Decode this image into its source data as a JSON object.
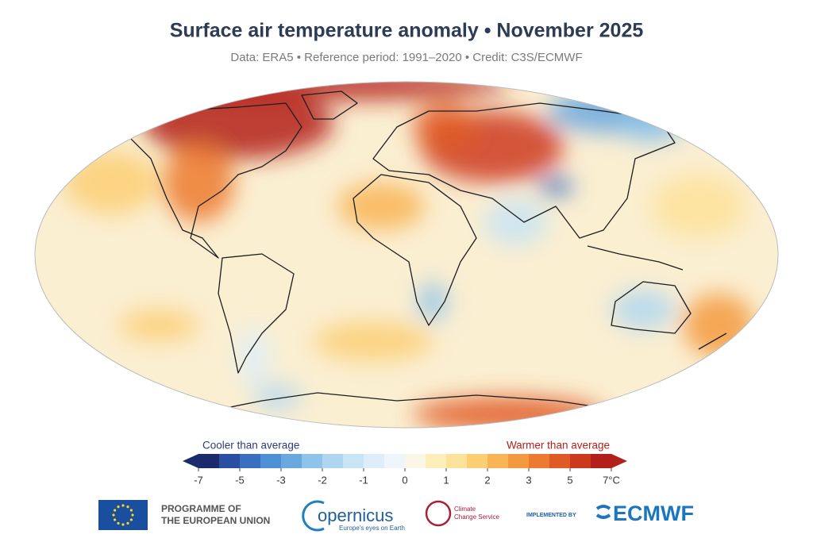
{
  "header": {
    "title": "Surface air temperature anomaly • November 2025",
    "subtitle": "Data: ERA5 • Reference period: 1991–2020 • Credit: C3S/ECMWF"
  },
  "legend": {
    "cooler_label": "Cooler than average",
    "warmer_label": "Warmer than average",
    "ticks": [
      "-7",
      "-5",
      "-3",
      "-2",
      "-1",
      "0",
      "1",
      "2",
      "3",
      "5",
      "7°C"
    ],
    "colors": [
      "#1a2a6c",
      "#2a4fa0",
      "#3a6fc0",
      "#4f8fd4",
      "#6aa8e0",
      "#8ec3ea",
      "#aed6f1",
      "#c8e4f5",
      "#ddeef8",
      "#eef6fb",
      "#fbf6e6",
      "#fdeebb",
      "#fde29a",
      "#fccf75",
      "#f8b455",
      "#f39a3e",
      "#ec7a30",
      "#e05a25",
      "#cc3a1e",
      "#b3201b"
    ]
  },
  "footer": {
    "eu_line1": "PROGRAMME OF",
    "eu_line2": "THE EUROPEAN UNION",
    "copernicus": "opernicus",
    "copernicus_tagline": "Europe's eyes on Earth",
    "c3s_line1": "Climate",
    "c3s_line2": "Change Service",
    "implemented_by": "IMPLEMENTED BY",
    "ecmwf": "ECMWF"
  }
}
